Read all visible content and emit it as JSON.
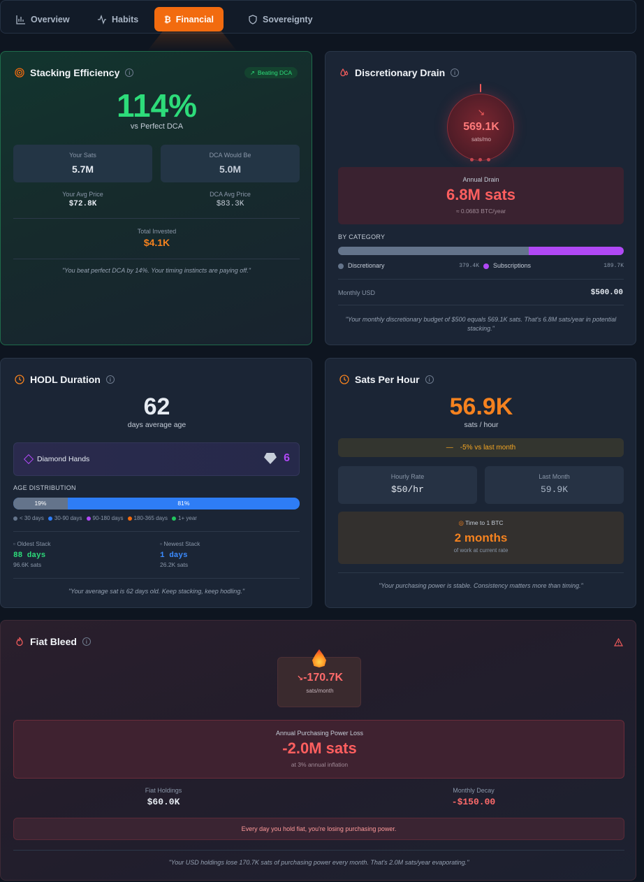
{
  "nav": {
    "tabs": [
      {
        "label": "Overview",
        "icon": "bar-chart-icon"
      },
      {
        "label": "Habits",
        "icon": "activity-icon"
      },
      {
        "label": "Financial",
        "icon": "bitcoin-icon",
        "active": true
      },
      {
        "label": "Sovereignty",
        "icon": "shield-icon"
      }
    ]
  },
  "stacking": {
    "title": "Stacking Efficiency",
    "badge": "Beating DCA",
    "percent": "114%",
    "percent_sub": "vs Perfect DCA",
    "your_sats_label": "Your Sats",
    "your_sats": "5.7M",
    "dca_label": "DCA Would Be",
    "dca_value": "5.0M",
    "avg_price_label": "Your Avg Price",
    "avg_price": "$72.8K",
    "dca_avg_label": "DCA Avg Price",
    "dca_avg": "$83.3K",
    "invested_label": "Total Invested",
    "invested": "$4.1K",
    "quote": "\"You beat perfect DCA by 14%. Your timing instincts are paying off.\""
  },
  "drain": {
    "title": "Discretionary Drain",
    "circle_value": "569.1K",
    "circle_unit": "sats/mo",
    "annual_label": "Annual Drain",
    "annual_value": "6.8M sats",
    "annual_btc": "≈ 0.0683 BTC/year",
    "category_label": "BY CATEGORY",
    "discretionary_share": 0.667,
    "categories": [
      {
        "name": "Discretionary",
        "value": "379.4K",
        "color": "#64748b"
      },
      {
        "name": "Subscriptions",
        "value": "189.7K",
        "color": "#b048f5"
      }
    ],
    "monthly_usd_label": "Monthly USD",
    "monthly_usd": "$500.00",
    "quote": "\"Your monthly discretionary budget of $500 equals 569.1K sats. That's 6.8M sats/year in potential stacking.\""
  },
  "hodl": {
    "title": "HODL Duration",
    "days": "62",
    "days_label": "days average age",
    "diamond_label": "Diamond Hands",
    "diamond_count": "6",
    "age_label": "AGE DISTRIBUTION",
    "age_seg1": "19%",
    "age_seg2": "81%",
    "age_seg1_fraction": 0.19,
    "legend": [
      {
        "label": "< 30 days",
        "color": "#64748b"
      },
      {
        "label": "30-90 days",
        "color": "#2e7df6"
      },
      {
        "label": "90-180 days",
        "color": "#b048f5"
      },
      {
        "label": "180-365 days",
        "color": "#f26b0f"
      },
      {
        "label": "1+ year",
        "color": "#22c55e"
      }
    ],
    "oldest_label": "Oldest Stack",
    "oldest_days": "88 days",
    "oldest_sats": "96.6K sats",
    "newest_label": "Newest Stack",
    "newest_days": "1 days",
    "newest_sats": "26.2K sats",
    "quote": "\"Your average sat is 62 days old. Keep stacking, keep hodling.\""
  },
  "sph": {
    "title": "Sats Per Hour",
    "value": "56.9K",
    "unit": "sats / hour",
    "trend": "-5% vs last month",
    "hourly_label": "Hourly Rate",
    "hourly": "$50/hr",
    "last_label": "Last Month",
    "last": "59.9K",
    "btc_label": "Time to 1 BTC",
    "btc_value": "2 months",
    "btc_sub": "of work at current rate",
    "quote": "\"Your purchasing power is stable. Consistency matters more than timing.\""
  },
  "bleed": {
    "title": "Fiat Bleed",
    "monthly": "-170.7K",
    "monthly_unit": "sats/month",
    "loss_label": "Annual Purchasing Power Loss",
    "loss_value": "-2.0M sats",
    "loss_sub": "at 3% annual inflation",
    "holdings_label": "Fiat Holdings",
    "holdings": "$60.0K",
    "decay_label": "Monthly Decay",
    "decay": "-$150.00",
    "warning": "Every day you hold fiat, you're losing purchasing power.",
    "quote": "\"Your USD holdings lose 170.7K sats of purchasing power every month. That's 2.0M sats/year evaporating.\""
  }
}
